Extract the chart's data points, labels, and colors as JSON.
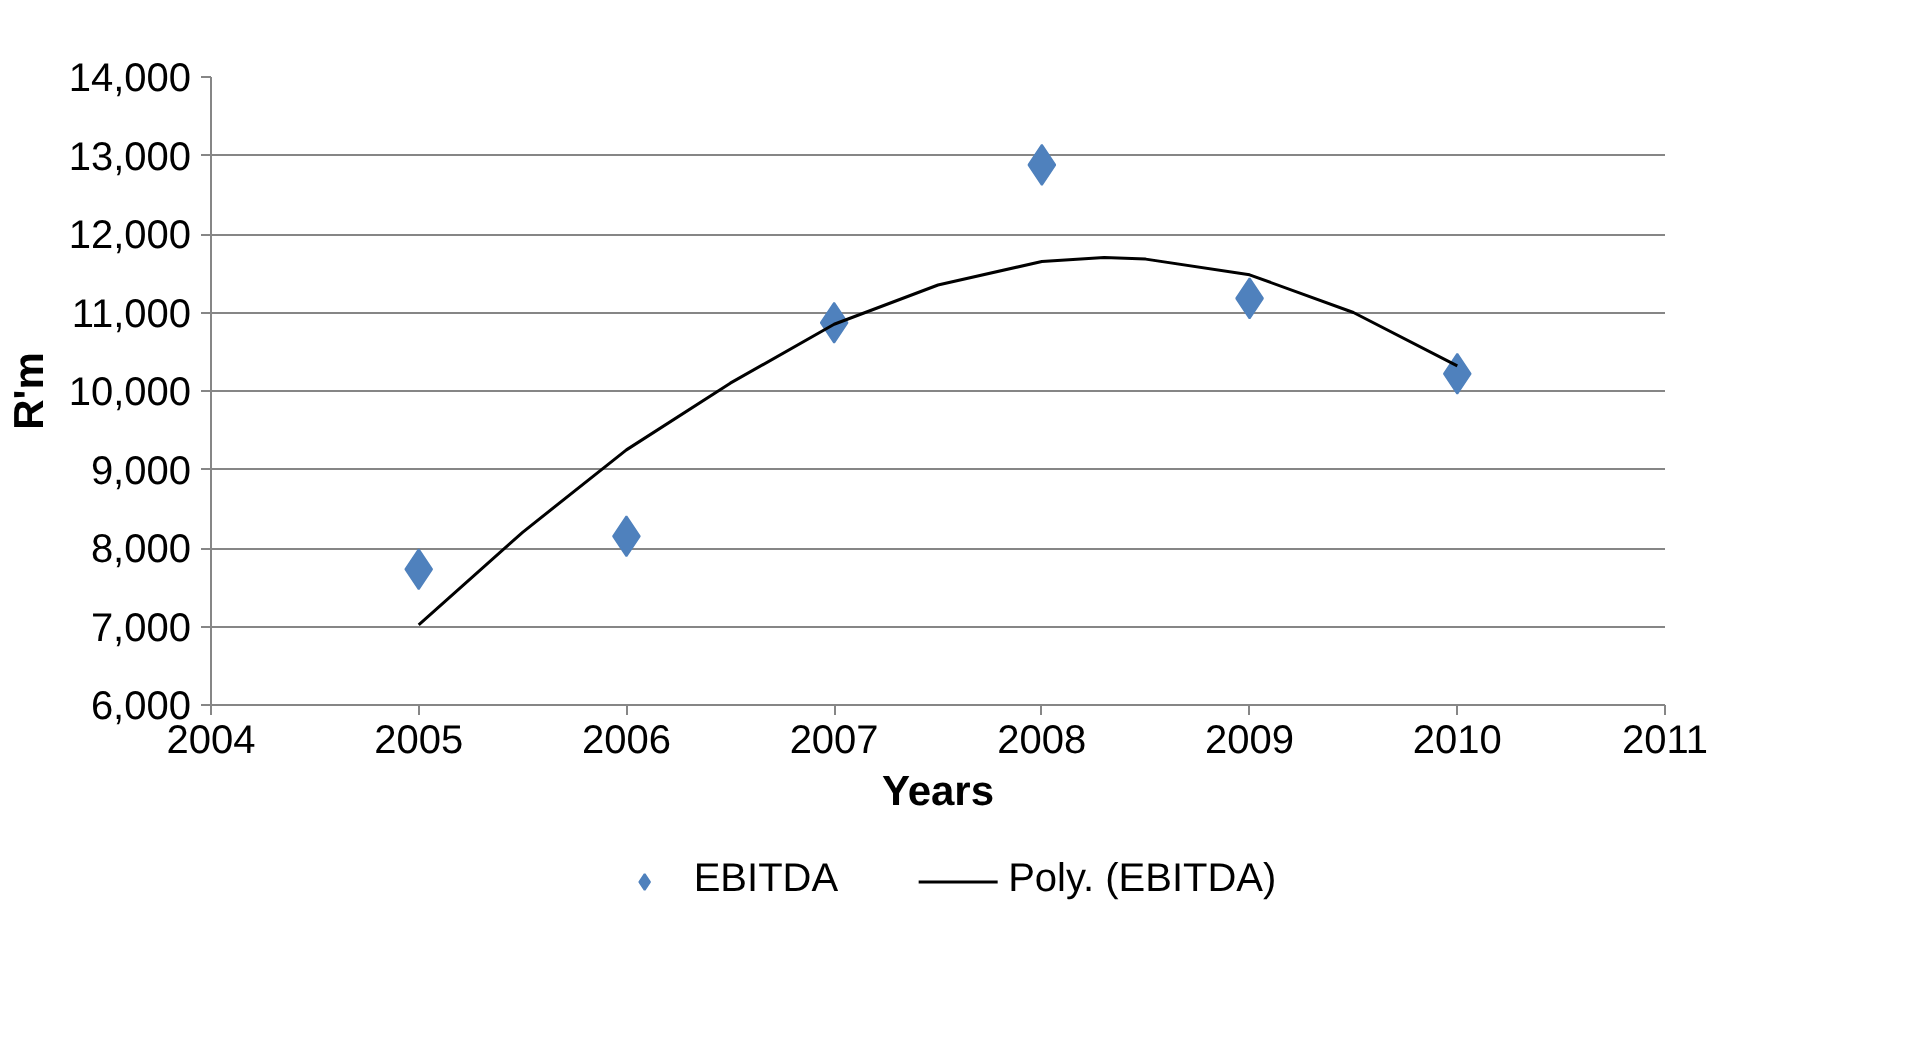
{
  "chart_data": {
    "type": "scatter",
    "xlabel": "Years",
    "ylabel": "R'm",
    "xlim": [
      2004,
      2011
    ],
    "xticks": [
      2004,
      2005,
      2006,
      2007,
      2008,
      2009,
      2010,
      2011
    ],
    "ylim": [
      6000,
      14000
    ],
    "yticks": [
      {
        "value": 6000,
        "label": "6,000"
      },
      {
        "value": 7000,
        "label": "7,000"
      },
      {
        "value": 8000,
        "label": "8,000"
      },
      {
        "value": 9000,
        "label": "9,000"
      },
      {
        "value": 10000,
        "label": "10,000"
      },
      {
        "value": 11000,
        "label": "11,000"
      },
      {
        "value": 12000,
        "label": "12,000"
      },
      {
        "value": 13000,
        "label": "13,000"
      },
      {
        "value": 14000,
        "label": "14,000"
      }
    ],
    "grid": "y",
    "legend": "bottom",
    "series": [
      {
        "name": "EBITDA",
        "marker": "diamond",
        "color": "#4f81bd",
        "x": [
          2005,
          2006,
          2007,
          2008,
          2009,
          2010
        ],
        "values": [
          7730,
          8150,
          10870,
          12880,
          11180,
          10220
        ]
      },
      {
        "name": "Poly. (EBITDA)",
        "type": "line",
        "marker": "none",
        "line_style": "solid",
        "color": "#000000",
        "x": [
          2005,
          2005.5,
          2006,
          2006.5,
          2007,
          2007.5,
          2008,
          2008.3,
          2008.5,
          2009,
          2009.5,
          2010
        ],
        "values": [
          7020,
          8200,
          9250,
          10100,
          10850,
          11350,
          11650,
          11700,
          11680,
          11480,
          11000,
          10320
        ]
      }
    ]
  }
}
